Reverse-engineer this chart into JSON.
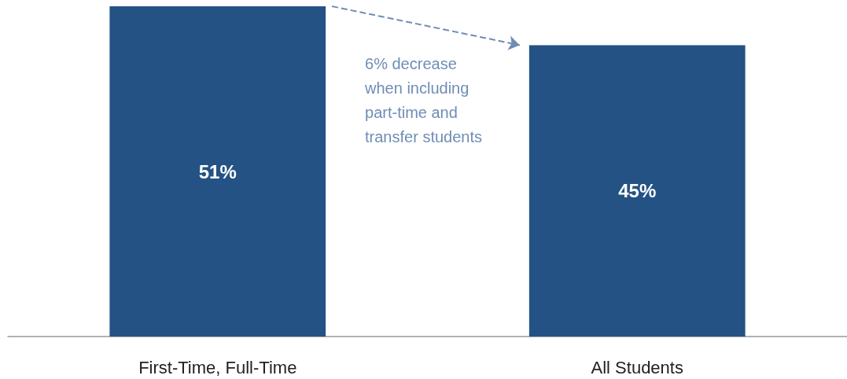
{
  "chart_data": {
    "type": "bar",
    "categories": [
      "First-Time, Full-Time",
      "All Students"
    ],
    "values": [
      51,
      45
    ],
    "value_labels": [
      "51%",
      "45%"
    ],
    "color": "#245285",
    "annotations": [
      "6% decrease\nwhen including\npart-time and\ntransfer students"
    ]
  }
}
